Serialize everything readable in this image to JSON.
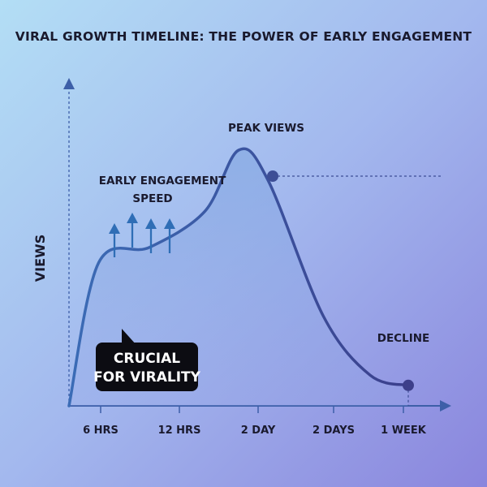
{
  "chart_data": {
    "type": "area",
    "title": "VIRAL GROWTH TIMELINE: THE POWER OF EARLY ENGAGEMENT",
    "ylabel": "VIEWS",
    "xlabel": "",
    "x_ticks": [
      "6 HRS",
      "12 HRS",
      "2 DAY",
      "2 DAYS",
      "1 WEEK"
    ],
    "grid": false,
    "series": [
      {
        "x": [
          0,
          0.35,
          0.95,
          1.6,
          2.0,
          2.35,
          3.0,
          3.55,
          4.0
        ],
        "values": [
          0,
          56,
          62,
          76,
          100,
          88,
          35,
          12,
          8
        ]
      }
    ],
    "ylim": [
      0,
      120
    ],
    "colors": {
      "line": "#3a62ad",
      "area": "#7ca3df",
      "marker": "#3d4e96",
      "axis": "#3d5fa8",
      "arrows": "#2f6eb6",
      "callout_bg": "#0c0c12"
    },
    "annotations": {
      "peak_label": "PEAK VIEWS",
      "early_line1": "EARLY ENGAGEMENT",
      "early_line2": "SPEED",
      "decline_label": "DECLINE",
      "callout_line1": "CRUCIAL",
      "callout_line2": "FOR VIRALITY"
    }
  }
}
